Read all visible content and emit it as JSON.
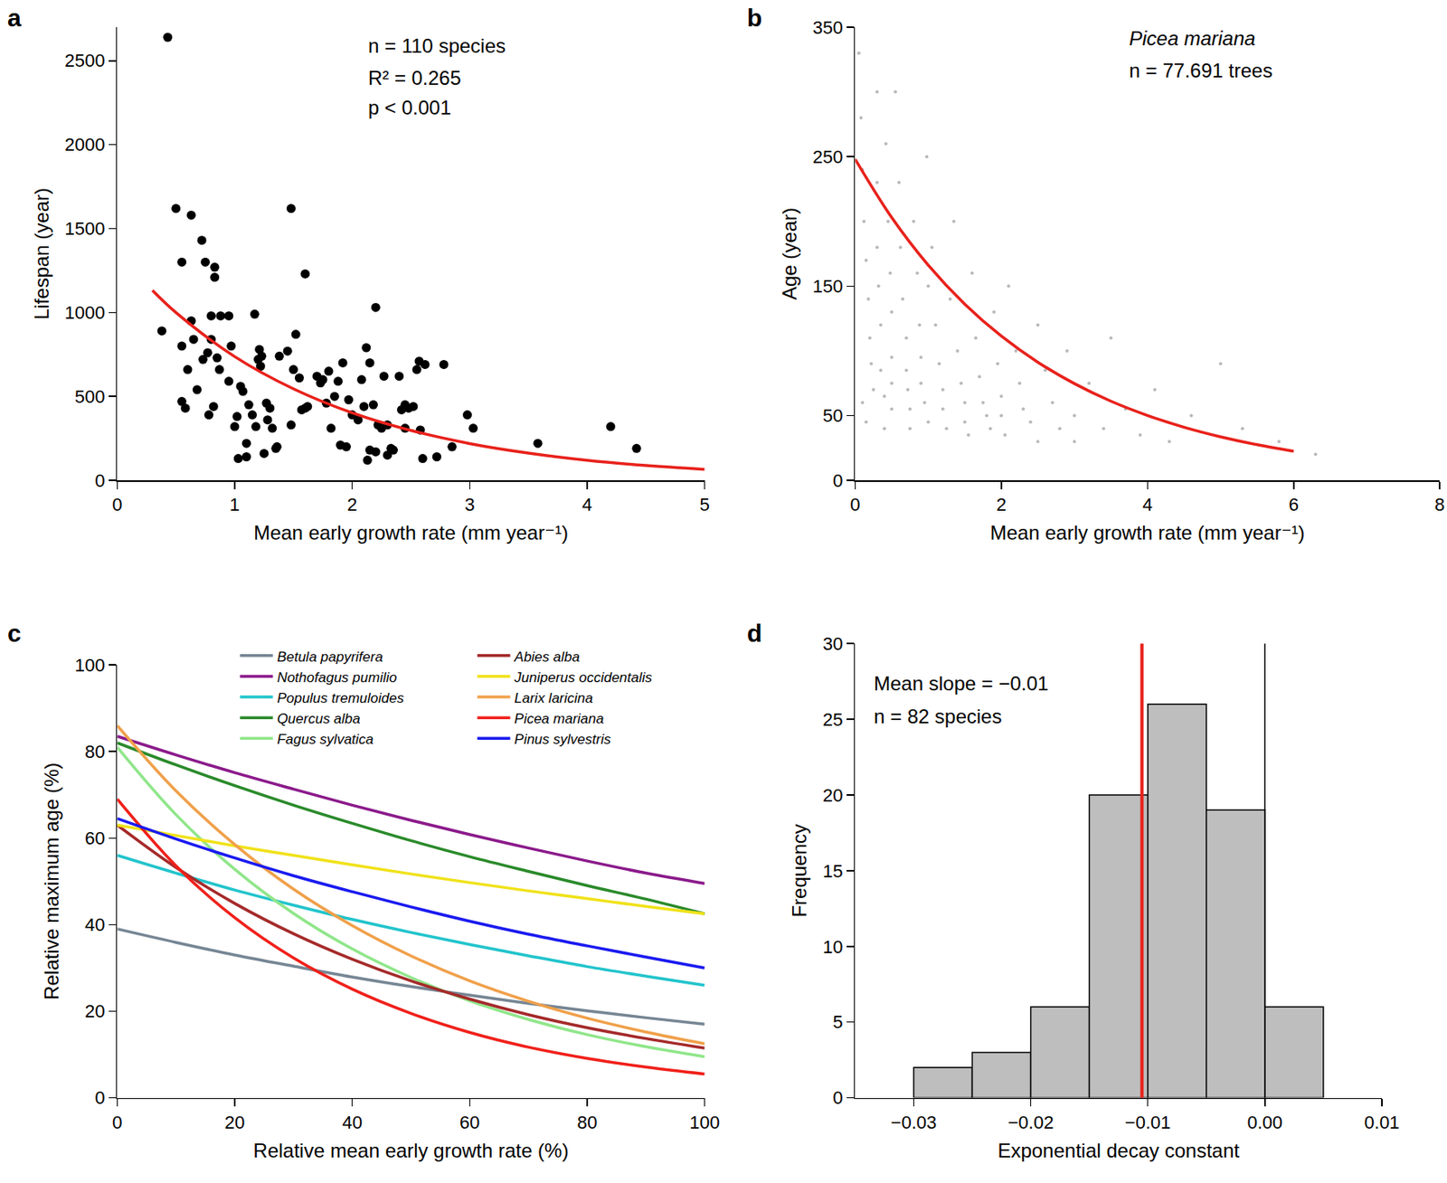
{
  "chart_data": [
    {
      "type": "scatter",
      "panel_label": "a",
      "x_label": "Mean early growth rate (mm year⁻¹)",
      "y_label": "Lifespan (year)",
      "annotations": [
        "n = 110 species",
        "R² = 0.265",
        "p < 0.001"
      ],
      "xlim": [
        0,
        5
      ],
      "xticks": [
        0,
        1,
        2,
        3,
        4,
        5
      ],
      "ylim": [
        0,
        2700
      ],
      "yticks": [
        0,
        500,
        1000,
        1500,
        2000,
        2500
      ],
      "grid": false,
      "series": [
        {
          "type": "scatter",
          "marker": "circle",
          "color": "#000000",
          "x": [
            0.43,
            0.38,
            0.5,
            0.55,
            0.55,
            0.55,
            0.58,
            0.6,
            0.63,
            0.63,
            0.65,
            0.68,
            0.72,
            0.73,
            0.75,
            0.77,
            0.78,
            0.8,
            0.8,
            0.82,
            0.83,
            0.83,
            0.85,
            0.87,
            0.88,
            0.95,
            0.95,
            0.97,
            1.0,
            1.02,
            1.03,
            1.05,
            1.07,
            1.1,
            1.12,
            1.15,
            1.17,
            1.18,
            1.2,
            1.21,
            1.22,
            1.23,
            1.25,
            1.27,
            1.28,
            1.3,
            1.32,
            1.35,
            1.36,
            1.45,
            1.48,
            1.48,
            1.5,
            1.52,
            1.55,
            1.6,
            1.6,
            1.62,
            1.7,
            1.73,
            1.75,
            1.78,
            1.8,
            1.82,
            1.85,
            1.88,
            1.9,
            1.92,
            1.95,
            1.97,
            2.0,
            2.05,
            2.08,
            2.1,
            2.12,
            2.13,
            2.15,
            2.15,
            2.18,
            2.2,
            2.22,
            2.25,
            2.27,
            2.3,
            2.3,
            2.33,
            2.35,
            2.4,
            2.42,
            2.45,
            2.48,
            2.52,
            2.55,
            2.57,
            2.58,
            2.6,
            2.62,
            2.72,
            2.78,
            2.85,
            2.98,
            3.03,
            3.58,
            4.2,
            4.42,
            2.2,
            1.38,
            1.57,
            2.45,
            1.1
          ],
          "values": [
            2640,
            890,
            1620,
            1300,
            800,
            470,
            430,
            660,
            1580,
            950,
            840,
            540,
            1430,
            720,
            1300,
            760,
            390,
            840,
            980,
            440,
            1270,
            1210,
            730,
            660,
            980,
            980,
            590,
            800,
            320,
            380,
            130,
            560,
            530,
            220,
            450,
            390,
            990,
            320,
            720,
            780,
            680,
            740,
            160,
            460,
            360,
            430,
            310,
            190,
            200,
            770,
            330,
            1620,
            660,
            870,
            610,
            1230,
            430,
            440,
            620,
            580,
            600,
            460,
            650,
            310,
            500,
            590,
            210,
            700,
            200,
            480,
            390,
            360,
            600,
            440,
            790,
            120,
            180,
            700,
            450,
            1030,
            330,
            310,
            620,
            330,
            150,
            190,
            180,
            620,
            420,
            450,
            430,
            440,
            660,
            710,
            300,
            130,
            690,
            140,
            690,
            200,
            390,
            310,
            220,
            320,
            190,
            170,
            740,
            420,
            310,
            140
          ]
        },
        {
          "type": "line",
          "line_style": "solid",
          "color": "#e8211b",
          "x": [
            0.3,
            0.5,
            1,
            1.5,
            2,
            2.5,
            3,
            3.5,
            4,
            4.5,
            5
          ],
          "values": [
            1132,
            1000,
            737,
            545,
            402,
            297,
            219,
            162,
            119,
            88,
            65
          ]
        }
      ]
    },
    {
      "type": "scatter",
      "panel_label": "b",
      "x_label": "Mean early growth rate (mm year⁻¹)",
      "y_label": "Age (year)",
      "annotations": [
        "Picea mariana",
        "n = 77.691 trees"
      ],
      "xlim": [
        0,
        8
      ],
      "xticks": [
        0,
        2,
        4,
        6,
        8
      ],
      "ylim": [
        0,
        350
      ],
      "yticks": [
        0,
        50,
        150,
        250,
        350
      ],
      "grid": false,
      "series": [
        {
          "type": "scatter",
          "marker": "dot",
          "color": "#808080",
          "x": [
            0.05,
            0.08,
            0.1,
            0.12,
            0.15,
            0.18,
            0.2,
            0.22,
            0.25,
            0.1,
            0.15,
            0.3,
            0.3,
            0.3,
            0.32,
            0.35,
            0.35,
            0.4,
            0.4,
            0.42,
            0.45,
            0.48,
            0.5,
            0.5,
            0.5,
            0.5,
            0.55,
            0.6,
            0.62,
            0.65,
            0.7,
            0.7,
            0.72,
            0.75,
            0.75,
            0.8,
            0.85,
            0.88,
            0.9,
            0.9,
            0.95,
            1.0,
            1.0,
            0.98,
            1.05,
            1.1,
            1.15,
            1.2,
            1.2,
            1.25,
            1.3,
            1.35,
            1.4,
            1.45,
            1.5,
            1.5,
            1.55,
            1.6,
            1.65,
            1.7,
            1.75,
            1.8,
            1.85,
            1.9,
            1.95,
            2.0,
            2.0,
            2.05,
            2.1,
            2.2,
            2.25,
            2.3,
            2.4,
            2.5,
            2.5,
            2.6,
            2.7,
            2.8,
            2.9,
            3.0,
            3.0,
            3.2,
            3.4,
            3.5,
            3.7,
            3.9,
            4.1,
            4.3,
            4.6,
            5.0,
            5.3,
            5.8,
            6.3
          ],
          "values": [
            330,
            280,
            240,
            200,
            170,
            140,
            110,
            90,
            70,
            60,
            45,
            300,
            230,
            180,
            150,
            120,
            85,
            65,
            40,
            260,
            200,
            160,
            130,
            95,
            75,
            55,
            300,
            230,
            180,
            140,
            110,
            85,
            70,
            55,
            40,
            200,
            160,
            120,
            95,
            75,
            60,
            45,
            150,
            250,
            180,
            120,
            90,
            70,
            55,
            40,
            140,
            200,
            100,
            75,
            60,
            45,
            35,
            160,
            110,
            80,
            60,
            50,
            40,
            130,
            90,
            65,
            50,
            35,
            150,
            100,
            75,
            55,
            45,
            30,
            120,
            85,
            60,
            40,
            100,
            50,
            30,
            75,
            40,
            110,
            55,
            35,
            70,
            30,
            50,
            90,
            40,
            30,
            20
          ]
        },
        {
          "type": "line",
          "line_style": "solid",
          "color": "#e8211b",
          "x": [
            0,
            0.5,
            1,
            1.5,
            2,
            2.5,
            3,
            3.5,
            4,
            4.5,
            5,
            5.5,
            6
          ],
          "values": [
            248,
            203,
            166.2,
            136.1,
            111.4,
            91.2,
            74.7,
            61.1,
            50.1,
            41,
            33.6,
            27.5,
            22.5
          ]
        }
      ]
    },
    {
      "type": "line",
      "panel_label": "c",
      "x_label": "Relative mean early growth rate (%)",
      "y_label": "Relative maximum age (%)",
      "xlim": [
        0,
        100
      ],
      "xticks": [
        0,
        20,
        40,
        60,
        80,
        100
      ],
      "ylim": [
        0,
        100
      ],
      "yticks": [
        0,
        20,
        40,
        60,
        80,
        100
      ],
      "grid": false,
      "legend": "top",
      "x": [
        0,
        10,
        20,
        30,
        40,
        50,
        60,
        70,
        80,
        90,
        100
      ],
      "series": [
        {
          "name": "Betula papyrifera",
          "color": "#768694",
          "values": [
            39,
            35.9,
            33,
            30.4,
            27.9,
            25.7,
            23.7,
            21.8,
            20.1,
            18.5,
            17
          ]
        },
        {
          "name": "Nothofagus pumilio",
          "color": "#8b1a8b",
          "values": [
            83.5,
            79.2,
            75.1,
            71.3,
            67.6,
            64.1,
            60.8,
            57.7,
            54.7,
            51.9,
            49.5
          ]
        },
        {
          "name": "Populus tremuloides",
          "color": "#22c4cc",
          "values": [
            56,
            51.9,
            48,
            44.5,
            41.2,
            38.2,
            35.4,
            32.8,
            30.3,
            28.1,
            26
          ]
        },
        {
          "name": "Quercus alba",
          "color": "#2a8a2a",
          "values": [
            82,
            76.9,
            72.1,
            67.6,
            63.4,
            59.4,
            55.7,
            52.3,
            49,
            45.9,
            42.5
          ]
        },
        {
          "name": "Fagus sylvatica",
          "color": "#90e68a",
          "values": [
            81,
            65.4,
            52.8,
            42.6,
            34.4,
            27.8,
            22.4,
            18.1,
            14.6,
            11.8,
            9.5
          ]
        },
        {
          "name": "Abies alba",
          "color": "#a52a2a",
          "values": [
            63,
            53.2,
            44.9,
            37.9,
            32,
            27,
            22.8,
            19.2,
            16.2,
            13.7,
            11.5
          ]
        },
        {
          "name": "Juniperus occidentalis",
          "color": "#f0e21a",
          "values": [
            63,
            60.6,
            58.2,
            56,
            53.8,
            51.7,
            49.7,
            47.8,
            46,
            44.2,
            42.5
          ]
        },
        {
          "name": "Larix laricina",
          "color": "#f0a04a",
          "values": [
            86,
            70.9,
            58.5,
            48.2,
            39.8,
            32.8,
            27,
            22.3,
            18.4,
            15.2,
            12.5
          ]
        },
        {
          "name": "Picea mariana",
          "color": "#f0201a",
          "values": [
            69,
            53.6,
            41.6,
            32.3,
            25.1,
            19.5,
            15.1,
            11.7,
            9.1,
            7.1,
            5.5
          ]
        },
        {
          "name": "Pinus sylvestris",
          "color": "#1a1af0",
          "values": [
            64.5,
            59.8,
            55.4,
            51.3,
            47.6,
            44.1,
            40.8,
            37.8,
            35.1,
            32.5,
            30
          ]
        }
      ]
    },
    {
      "type": "histogram",
      "panel_label": "d",
      "x_label": "Exponential decay constant",
      "y_label": "Frequency",
      "annotations": [
        "Mean slope = −0.01",
        "n = 82 species"
      ],
      "xlim": [
        -0.035,
        0.01
      ],
      "xticks": [
        {
          "value": -0.03,
          "label": "−0.03"
        },
        {
          "value": -0.02,
          "label": "−0.02"
        },
        {
          "value": -0.01,
          "label": "−0.01"
        },
        {
          "value": 0,
          "label": "0.00"
        },
        {
          "value": 0.01,
          "label": "0.01"
        }
      ],
      "ylim": [
        0,
        30
      ],
      "yticks": [
        0,
        5,
        10,
        15,
        20,
        25,
        30
      ],
      "grid": false,
      "bins": [
        -0.03,
        -0.025,
        -0.02,
        -0.015,
        -0.01,
        -0.005,
        0,
        0.005
      ],
      "values": [
        2,
        3,
        6,
        20,
        26,
        19,
        6
      ],
      "color": "#bebebe",
      "vlines": [
        {
          "x": -0.0105,
          "color": "#e8211b"
        },
        {
          "x": 0,
          "color": "#000000"
        }
      ]
    }
  ]
}
